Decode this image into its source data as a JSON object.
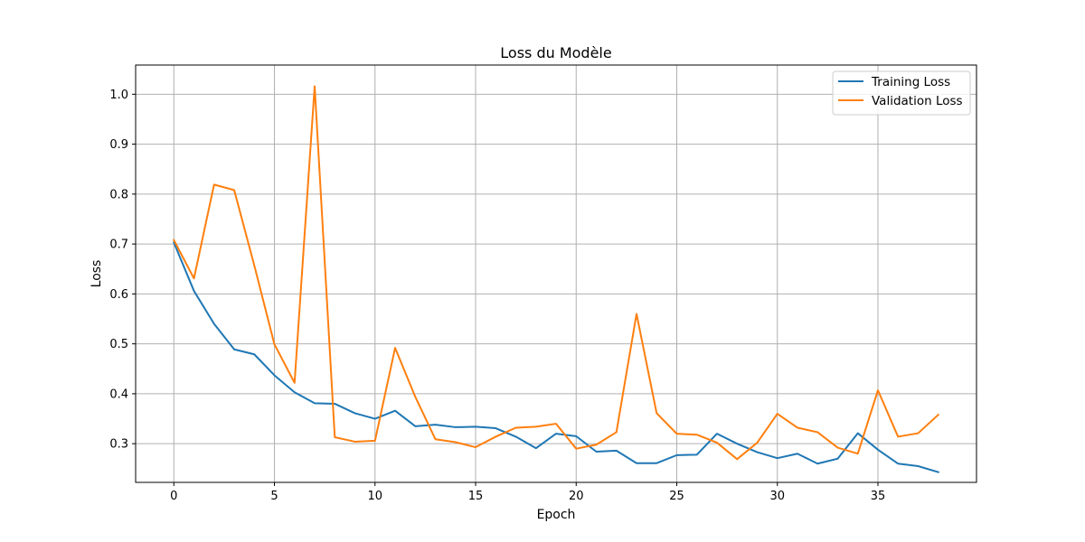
{
  "chart_data": {
    "type": "line",
    "title": "Loss du Modèle",
    "xlabel": "Epoch",
    "ylabel": "Loss",
    "xlim": [
      -1.9,
      39.9
    ],
    "ylim": [
      0.2225,
      1.0585
    ],
    "xticks": [
      0,
      5,
      10,
      15,
      20,
      25,
      30,
      35
    ],
    "yticks": [
      0.3,
      0.4,
      0.5,
      0.6,
      0.7,
      0.8,
      0.9,
      1.0
    ],
    "x_tick_labels": [
      "0",
      "5",
      "10",
      "15",
      "20",
      "25",
      "30",
      "35"
    ],
    "y_tick_labels": [
      "0.3",
      "0.4",
      "0.5",
      "0.6",
      "0.7",
      "0.8",
      "0.9",
      "1.0"
    ],
    "grid": true,
    "legend_position": "top-right",
    "x": [
      0,
      1,
      2,
      3,
      4,
      5,
      6,
      7,
      8,
      9,
      10,
      11,
      12,
      13,
      14,
      15,
      16,
      17,
      18,
      19,
      20,
      21,
      22,
      23,
      24,
      25,
      26,
      27,
      28,
      29,
      30,
      31,
      32,
      33,
      34,
      35,
      36,
      37,
      38
    ],
    "series": [
      {
        "name": "Training Loss",
        "color": "#1f77b4",
        "values": [
          0.703,
          0.606,
          0.54,
          0.489,
          0.479,
          0.437,
          0.403,
          0.381,
          0.38,
          0.361,
          0.35,
          0.366,
          0.335,
          0.338,
          0.333,
          0.334,
          0.331,
          0.314,
          0.291,
          0.32,
          0.315,
          0.284,
          0.286,
          0.261,
          0.261,
          0.277,
          0.278,
          0.32,
          0.3,
          0.283,
          0.271,
          0.28,
          0.26,
          0.27,
          0.321,
          0.288,
          0.26,
          0.255,
          0.243
        ]
      },
      {
        "name": "Validation Loss",
        "color": "#ff7f0e",
        "values": [
          0.708,
          0.631,
          0.819,
          0.808,
          0.657,
          0.499,
          0.422,
          1.016,
          0.313,
          0.304,
          0.306,
          0.492,
          0.394,
          0.309,
          0.303,
          0.293,
          0.314,
          0.332,
          0.334,
          0.34,
          0.29,
          0.298,
          0.323,
          0.56,
          0.361,
          0.32,
          0.318,
          0.302,
          0.269,
          0.302,
          0.36,
          0.332,
          0.323,
          0.292,
          0.28,
          0.407,
          0.314,
          0.321,
          0.358
        ]
      }
    ]
  }
}
